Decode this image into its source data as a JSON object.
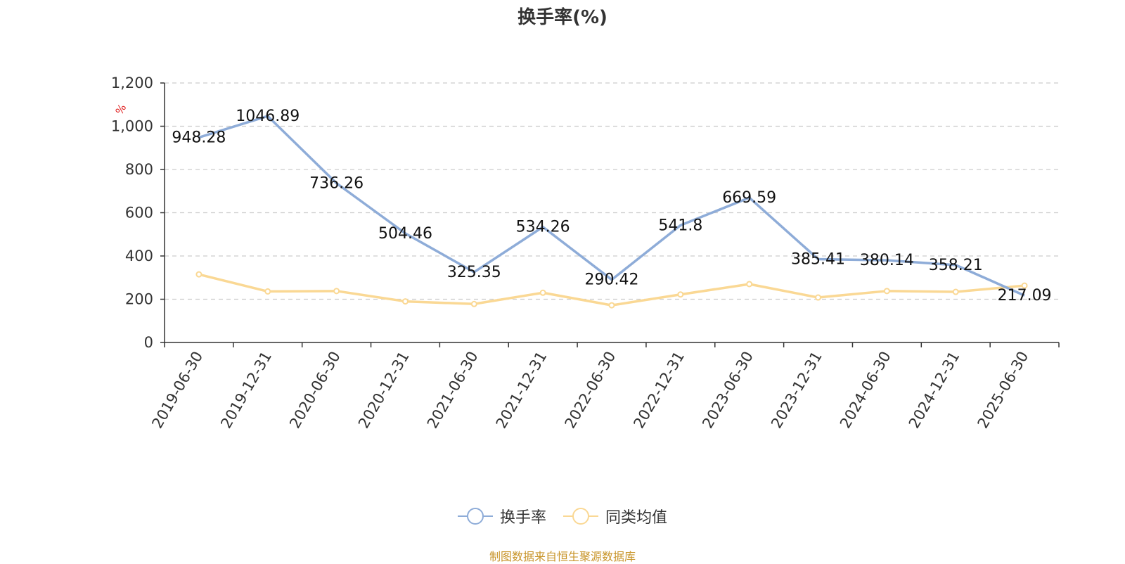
{
  "chart_data": {
    "type": "line",
    "title": "换手率(%)",
    "ylabel": "%",
    "ylim": [
      0,
      1200
    ],
    "yticks": [
      0,
      200,
      400,
      600,
      800,
      1000,
      1200
    ],
    "ytick_labels": [
      "0",
      "200",
      "400",
      "600",
      "800",
      "1,000",
      "1,200"
    ],
    "categories": [
      "2019-06-30",
      "2019-12-31",
      "2020-06-30",
      "2020-12-31",
      "2021-06-30",
      "2021-12-31",
      "2022-06-30",
      "2022-12-31",
      "2023-06-30",
      "2023-12-31",
      "2024-06-30",
      "2024-12-31",
      "2025-06-30"
    ],
    "series": [
      {
        "name": "换手率",
        "color": "#8eacd8",
        "values": [
          948.28,
          1046.89,
          736.26,
          504.46,
          325.35,
          534.26,
          290.42,
          541.8,
          669.59,
          385.41,
          380.14,
          358.21,
          217.09
        ],
        "labels": [
          "948.28",
          "1046.89",
          "736.26",
          "504.46",
          "325.35",
          "534.26",
          "290.42",
          "541.8",
          "669.59",
          "385.41",
          "380.14",
          "358.21",
          "217.09"
        ]
      },
      {
        "name": "同类均值",
        "color": "#fad894",
        "values": [
          315,
          236,
          238,
          190,
          178,
          230,
          172,
          222,
          270,
          208,
          238,
          234,
          263
        ]
      }
    ],
    "grid": true,
    "legend_position": "bottom-center"
  },
  "source_text": "制图数据来自恒生聚源数据库"
}
